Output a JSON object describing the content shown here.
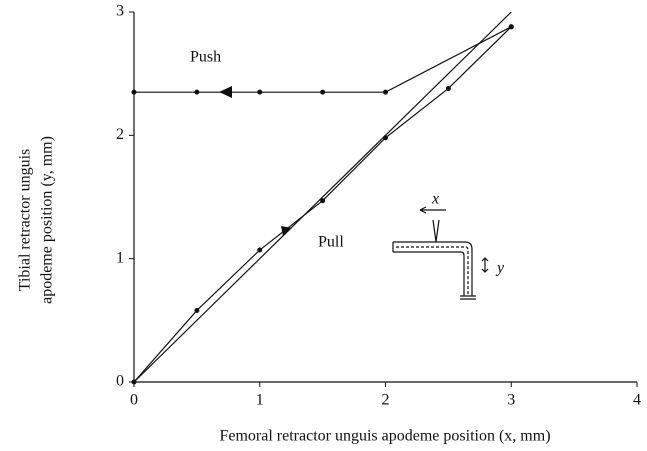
{
  "chart_data": {
    "type": "line",
    "xlabel": "Femoral retractor unguis apodeme position (x, mm)",
    "ylabel": [
      "Tibial retractor unguis",
      "apodeme position (y, mm)"
    ],
    "xlim": [
      0,
      4
    ],
    "xticks": [
      0,
      1,
      2,
      3,
      4
    ],
    "ylim": [
      0,
      3
    ],
    "yticks": [
      0,
      1,
      2,
      3
    ],
    "series": [
      {
        "x": [
          0,
          3
        ],
        "values": [
          0,
          3
        ],
        "color": "#111",
        "markers": false
      },
      {
        "x": [
          0,
          0.5,
          1,
          1.5,
          2,
          2.5,
          3
        ],
        "values": [
          0,
          0.58,
          1.07,
          1.47,
          1.98,
          2.38,
          2.88
        ],
        "color": "#111",
        "markers": true
      },
      {
        "x": [
          3,
          2,
          1.5,
          1,
          0.5,
          0
        ],
        "values": [
          2.88,
          2.35,
          2.35,
          2.35,
          2.35,
          2.35
        ],
        "color": "#111",
        "markers": true
      }
    ],
    "annotations": [
      "Push",
      "Pull",
      "x",
      "y"
    ]
  }
}
